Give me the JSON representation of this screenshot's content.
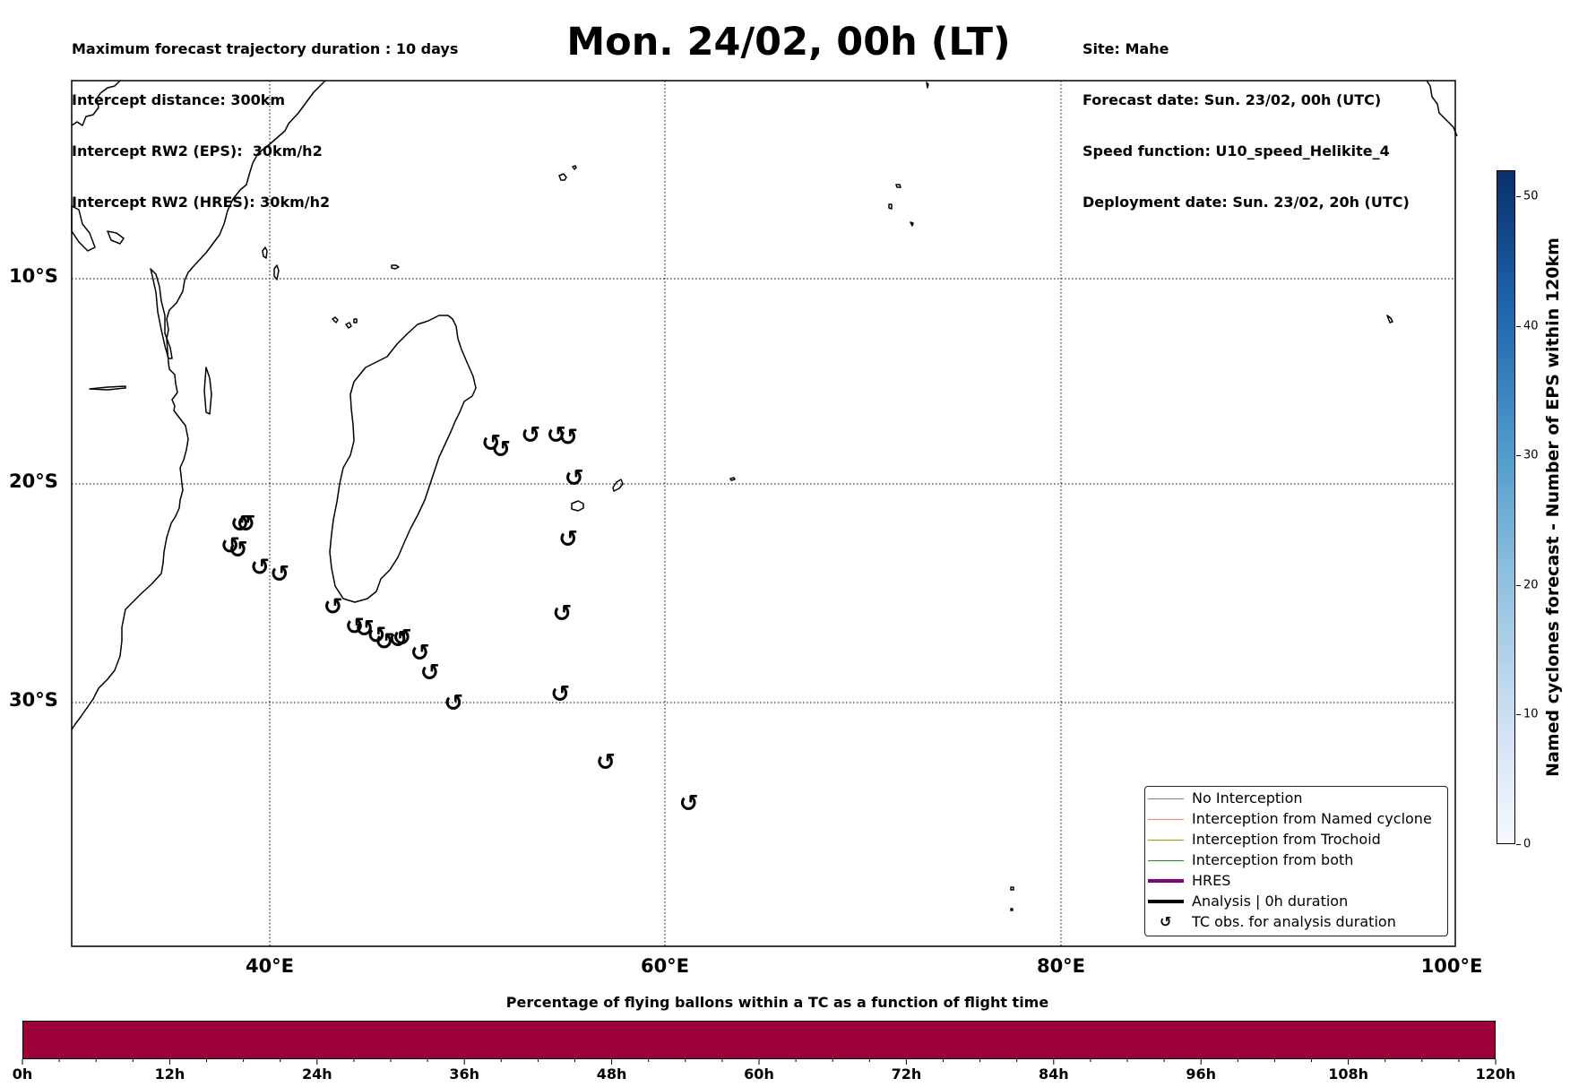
{
  "header_left": [
    "Maximum forecast trajectory duration : 10 days",
    "Intercept distance: 300km",
    "Intercept RW2 (EPS):  30km/h2",
    "Intercept RW2 (HRES): 30km/h2"
  ],
  "title": "Mon. 24/02, 00h (LT)",
  "header_right": [
    "Site: Mahe",
    "Forecast date: Sun. 23/02, 00h (UTC)",
    "Speed function: U10_speed_Helikite_4",
    "Deployment date: Sun. 23/02, 20h (UTC)"
  ],
  "map": {
    "lat_labels": [
      "10°S",
      "20°S",
      "30°S"
    ],
    "lon_labels": [
      "40°E",
      "60°E",
      "80°E",
      "100°E"
    ],
    "gridlines": "dotted",
    "tc_symbol": "↺",
    "tc_positions": [
      {
        "lon": 51.2,
        "lat": -18.0
      },
      {
        "lon": 51.7,
        "lat": -18.3
      },
      {
        "lon": 53.2,
        "lat": -17.6
      },
      {
        "lon": 54.5,
        "lat": -17.6
      },
      {
        "lon": 55.1,
        "lat": -17.7
      },
      {
        "lon": 55.4,
        "lat": -19.7
      },
      {
        "lon": 55.1,
        "lat": -22.5
      },
      {
        "lon": 54.8,
        "lat": -25.9
      },
      {
        "lon": 54.7,
        "lat": -29.6
      },
      {
        "lon": 57.0,
        "lat": -32.7
      },
      {
        "lon": 61.2,
        "lat": -34.6
      },
      {
        "lon": 38.5,
        "lat": -21.8
      },
      {
        "lon": 38.8,
        "lat": -21.8
      },
      {
        "lon": 38.0,
        "lat": -22.8
      },
      {
        "lon": 38.4,
        "lat": -23.0
      },
      {
        "lon": 39.5,
        "lat": -23.8
      },
      {
        "lon": 40.5,
        "lat": -24.1
      },
      {
        "lon": 43.2,
        "lat": -25.6
      },
      {
        "lon": 44.3,
        "lat": -26.5
      },
      {
        "lon": 44.8,
        "lat": -26.6
      },
      {
        "lon": 45.4,
        "lat": -26.9
      },
      {
        "lon": 45.8,
        "lat": -27.2
      },
      {
        "lon": 46.5,
        "lat": -27.1
      },
      {
        "lon": 46.7,
        "lat": -27.0
      },
      {
        "lon": 47.6,
        "lat": -27.7
      },
      {
        "lon": 48.1,
        "lat": -28.6
      },
      {
        "lon": 49.3,
        "lat": -30.0
      }
    ]
  },
  "legend": {
    "entries": [
      {
        "label": "No Interception",
        "color": "#808080",
        "style": "line-thin"
      },
      {
        "label": "Interception from Named cyclone",
        "color": "#ff7f50",
        "style": "line-thin"
      },
      {
        "label": "Interception from Trochoid",
        "color": "#999900",
        "style": "line-thin"
      },
      {
        "label": "Interception from both",
        "color": "#228b22",
        "style": "line-thin"
      },
      {
        "label": "HRES",
        "color": "#800080",
        "style": "line-thick"
      },
      {
        "label": "Analysis | 0h duration",
        "color": "#000000",
        "style": "line-thick"
      },
      {
        "label": "TC obs. for analysis duration",
        "color": "#000000",
        "style": "symbol",
        "symbol": "↺"
      }
    ]
  },
  "colorbar": {
    "label": "Named cyclones forecast - Number of EPS within 120km",
    "ticks": [
      "0",
      "10",
      "20",
      "30",
      "40",
      "50"
    ],
    "range": [
      0,
      52
    ],
    "colormap": "Blues"
  },
  "flight_bar": {
    "title": "Percentage of flying ballons within a TC as a function of flight time",
    "color": "#9e003a",
    "labels": [
      "0h",
      "12h",
      "24h",
      "36h",
      "48h",
      "60h",
      "72h",
      "84h",
      "96h",
      "108h",
      "120h"
    ]
  }
}
